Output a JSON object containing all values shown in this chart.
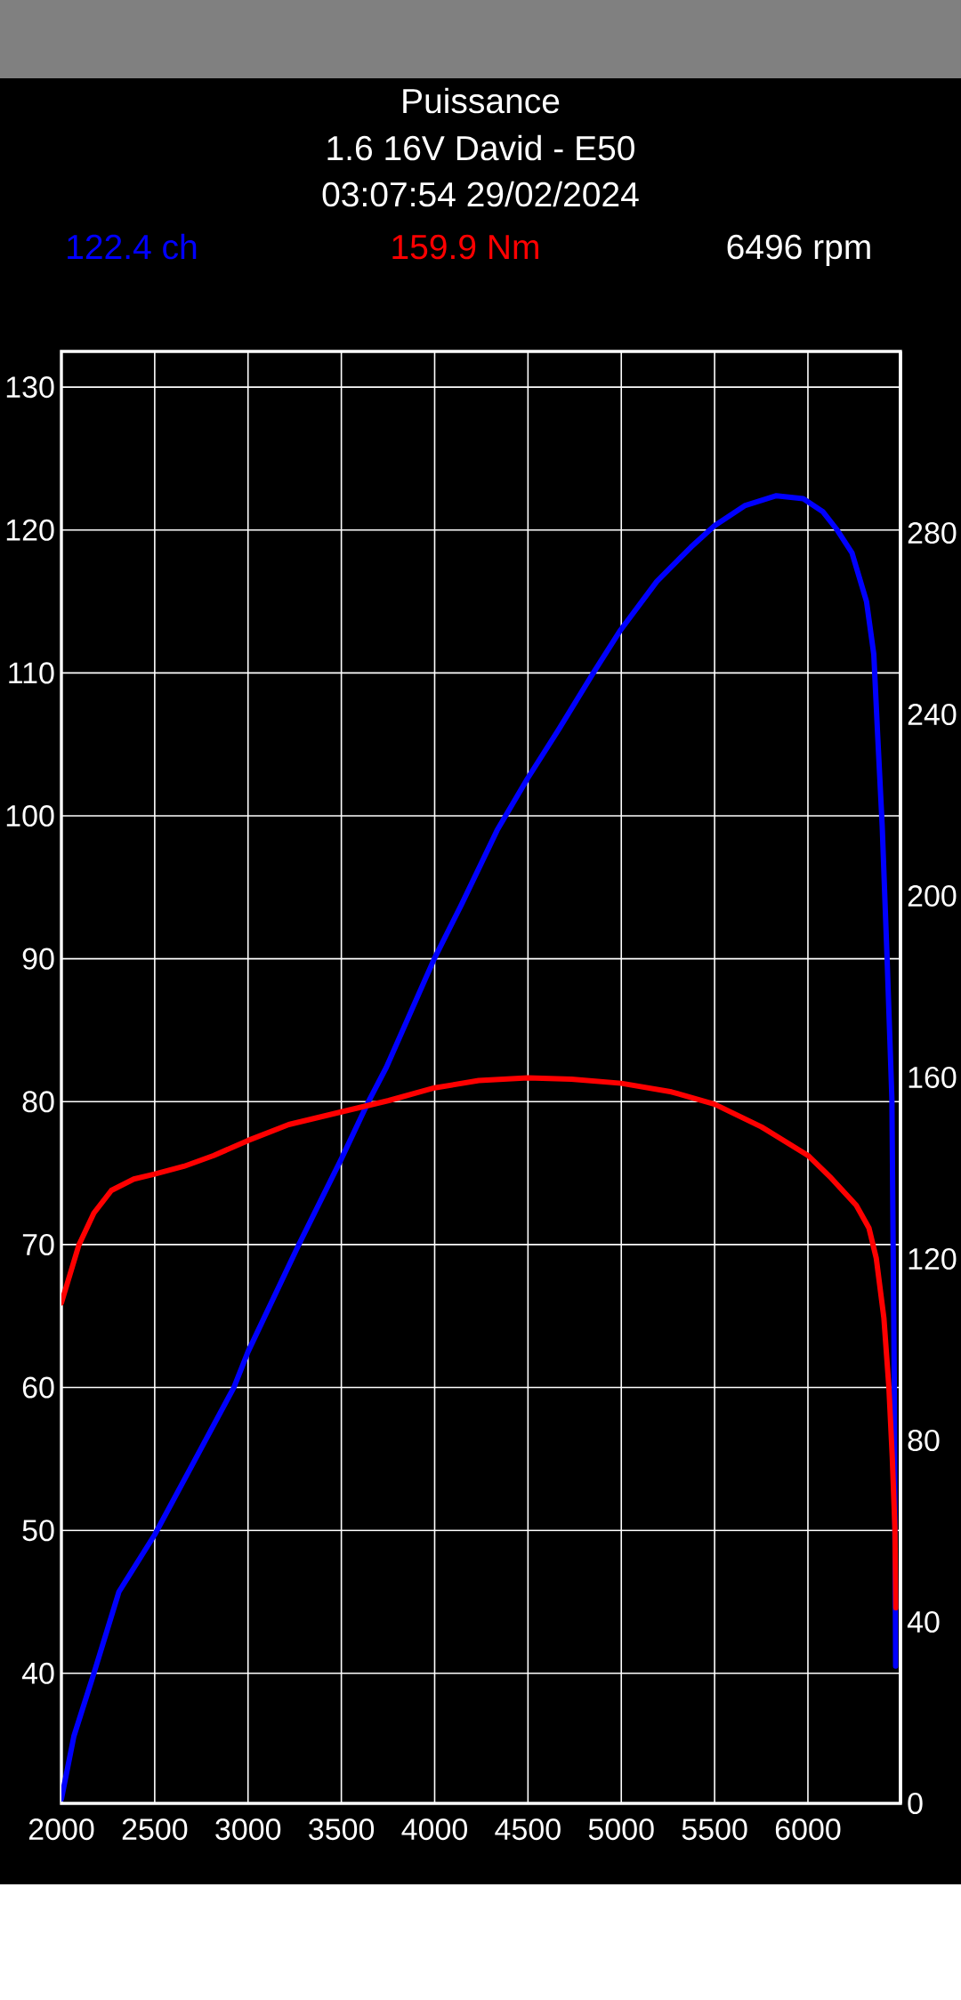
{
  "chart_data": {
    "type": "line",
    "title": "Puissance",
    "subtitle": "1.6 16V David - E50",
    "annotations": [
      "03:07:54 29/02/2024",
      "6496 rpm"
    ],
    "series": [
      {
        "name": "122.4 ch",
        "color": "#0000ff",
        "x": [
          2000,
          2067,
          2174,
          2308,
          2500,
          2710,
          2924,
          3000,
          3272,
          3500,
          3645,
          3741,
          3998,
          4144,
          4335,
          4497,
          4667,
          4850,
          4996,
          5190,
          5373,
          5499,
          5661,
          5831,
          5975,
          6079,
          6157,
          6236,
          6314,
          6353,
          6372,
          6398,
          6424,
          6450,
          6463,
          6470
        ],
        "values": [
          31.2,
          35.6,
          40,
          45.7,
          49.7,
          54.8,
          60,
          62.5,
          70,
          76,
          80,
          82.4,
          90,
          93.8,
          99,
          102.6,
          106.1,
          110,
          113,
          116.4,
          118.8,
          120.3,
          121.7,
          122.4,
          122.2,
          121.3,
          120,
          118.4,
          115,
          111.3,
          106.1,
          99.3,
          90.1,
          80.2,
          60,
          40.5
        ]
      },
      {
        "name": "159.9 Nm",
        "color": "#ff0000",
        "axis": "y2",
        "x": [
          2000,
          2094,
          2174,
          2268,
          2388,
          2500,
          2656,
          2817,
          3000,
          3218,
          3500,
          3754,
          4000,
          4236,
          4500,
          4733,
          5000,
          5269,
          5500,
          5751,
          6000,
          6125,
          6259,
          6327,
          6366,
          6407,
          6434,
          6452,
          6466,
          6471
        ],
        "values": [
          110.3,
          123.1,
          130.1,
          135.1,
          137.6,
          138.7,
          140.4,
          142.8,
          146.1,
          149.6,
          152.4,
          154.9,
          157.7,
          159.3,
          159.9,
          159.6,
          158.7,
          156.8,
          154.1,
          149.1,
          142.8,
          137.8,
          131.8,
          126.8,
          120.2,
          107,
          91.6,
          76.2,
          60.8,
          43.1
        ]
      }
    ],
    "xlim": [
      2000,
      6496
    ],
    "xticks": [
      2000,
      2500,
      3000,
      3500,
      4000,
      4500,
      5000,
      5500,
      6000
    ],
    "ylim": [
      30.9,
      132.5
    ],
    "yticks": [
      40,
      50,
      60,
      70,
      80,
      90,
      100,
      110,
      120,
      130
    ],
    "y2lim": [
      0,
      320
    ],
    "y2ticks": [
      0,
      40,
      80,
      120,
      160,
      200,
      240,
      280
    ],
    "grid": true,
    "marker": "none",
    "line_style": "solid"
  }
}
